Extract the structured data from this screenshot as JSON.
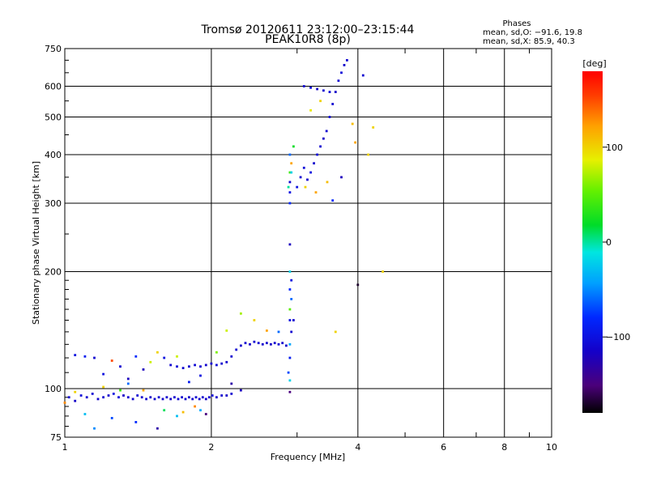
{
  "chart_data": {
    "type": "scatter",
    "title": "Tromsø 20120611 23:12:00–23:15:44",
    "subtitle": "PEAK10R8 (8p)",
    "xlabel": "Frequency [MHz]",
    "ylabel": "Stationary phase Virtual Height [km]",
    "x_scale": "log",
    "y_scale": "log",
    "xlim": [
      1,
      10
    ],
    "ylim": [
      75,
      750
    ],
    "x_ticks": [
      1,
      2,
      4,
      6,
      8,
      10
    ],
    "x_tick_labels": [
      "1",
      "2",
      "4",
      "6",
      "8",
      "10"
    ],
    "y_ticks": [
      75,
      100,
      200,
      300,
      400,
      500,
      600,
      750
    ],
    "y_tick_labels": [
      "75",
      "100",
      "200",
      "300",
      "400",
      "500",
      "600",
      "750"
    ],
    "grid": true,
    "phases_stats": {
      "title": "Phases",
      "line_o": "mean, sd,O: −91.6, 19.8",
      "line_x": "mean, sd,X:  85.9, 40.3"
    },
    "colorbar": {
      "label": "[deg]",
      "range": [
        -180,
        180
      ],
      "ticks": [
        100,
        0,
        -100
      ],
      "tick_labels": [
        "100",
        "0",
        "−100"
      ]
    },
    "series": [
      {
        "points": [
          [
            1.02,
            95,
            -110
          ],
          [
            1.05,
            93,
            -115
          ],
          [
            1.08,
            96,
            -105
          ],
          [
            1.11,
            95,
            -110
          ],
          [
            1.14,
            97,
            -108
          ],
          [
            1.17,
            94,
            -112
          ],
          [
            1.2,
            95,
            -110
          ],
          [
            1.23,
            96,
            -112
          ],
          [
            1.26,
            97,
            -100
          ],
          [
            1.29,
            95,
            -105
          ],
          [
            1.32,
            96,
            -115
          ],
          [
            1.35,
            95,
            -110
          ],
          [
            1.38,
            94,
            -110
          ],
          [
            1.41,
            96,
            -108
          ],
          [
            1.44,
            95,
            -112
          ],
          [
            1.47,
            94,
            -110
          ],
          [
            1.5,
            95,
            -115
          ],
          [
            1.53,
            94,
            -110
          ],
          [
            1.56,
            95,
            -108
          ],
          [
            1.59,
            94,
            -112
          ],
          [
            1.62,
            95,
            -110
          ],
          [
            1.65,
            94,
            -115
          ],
          [
            1.68,
            95,
            -110
          ],
          [
            1.71,
            94,
            -108
          ],
          [
            1.74,
            95,
            -112
          ],
          [
            1.77,
            94,
            -110
          ],
          [
            1.8,
            95,
            -115
          ],
          [
            1.83,
            94,
            -110
          ],
          [
            1.86,
            95,
            -108
          ],
          [
            1.89,
            94,
            -112
          ],
          [
            1.92,
            95,
            -110
          ],
          [
            1.95,
            94,
            -115
          ],
          [
            1.98,
            95,
            -110
          ],
          [
            2.01,
            96,
            -108
          ],
          [
            2.05,
            95,
            -112
          ],
          [
            2.1,
            96,
            -110
          ],
          [
            2.15,
            96,
            -115
          ],
          [
            2.2,
            97,
            -110
          ],
          [
            1.2,
            101,
            100
          ],
          [
            1.3,
            99,
            40
          ],
          [
            1.45,
            99,
            120
          ],
          [
            1.6,
            88,
            10
          ],
          [
            1.75,
            87,
            110
          ],
          [
            1.85,
            90,
            130
          ],
          [
            1.95,
            86,
            -150
          ],
          [
            1.15,
            79,
            -50
          ],
          [
            1.4,
            82,
            -80
          ],
          [
            1.55,
            79,
            -130
          ],
          [
            1.7,
            85,
            -30
          ],
          [
            1.9,
            88,
            -40
          ],
          [
            1.1,
            86,
            -30
          ],
          [
            1.25,
            84,
            -70
          ],
          [
            1.0,
            92,
            130
          ],
          [
            1.05,
            98,
            100
          ],
          [
            1.35,
            103,
            -60
          ],
          [
            1.65,
            115,
            -110
          ],
          [
            1.7,
            114,
            -105
          ],
          [
            1.75,
            113,
            -110
          ],
          [
            1.8,
            114,
            -112
          ],
          [
            1.85,
            115,
            -108
          ],
          [
            1.9,
            114,
            -110
          ],
          [
            1.95,
            115,
            -112
          ],
          [
            2.0,
            116,
            -110
          ],
          [
            2.05,
            115,
            -105
          ],
          [
            2.1,
            116,
            -110
          ],
          [
            2.15,
            117,
            -112
          ],
          [
            2.2,
            121,
            -110
          ],
          [
            2.25,
            126,
            -108
          ],
          [
            2.3,
            129,
            -112
          ],
          [
            2.35,
            131,
            -110
          ],
          [
            2.4,
            130,
            -115
          ],
          [
            2.45,
            132,
            -110
          ],
          [
            2.5,
            131,
            -108
          ],
          [
            2.55,
            130,
            -112
          ],
          [
            2.6,
            131,
            -110
          ],
          [
            2.65,
            130,
            -115
          ],
          [
            2.7,
            131,
            -110
          ],
          [
            2.75,
            130,
            -108
          ],
          [
            2.8,
            131,
            -112
          ],
          [
            2.85,
            129,
            -110
          ],
          [
            1.05,
            122,
            -100
          ],
          [
            1.1,
            121,
            -90
          ],
          [
            1.15,
            120,
            -110
          ],
          [
            1.25,
            118,
            150
          ],
          [
            1.3,
            114,
            -110
          ],
          [
            1.4,
            121,
            -80
          ],
          [
            1.45,
            112,
            -120
          ],
          [
            1.5,
            117,
            80
          ],
          [
            1.55,
            124,
            100
          ],
          [
            1.6,
            120,
            -100
          ],
          [
            1.7,
            121,
            80
          ],
          [
            1.2,
            109,
            -100
          ],
          [
            1.35,
            106,
            -120
          ],
          [
            1.8,
            104,
            -90
          ],
          [
            1.9,
            108,
            -100
          ],
          [
            2.05,
            124,
            60
          ],
          [
            2.15,
            141,
            80
          ],
          [
            2.3,
            156,
            70
          ],
          [
            2.45,
            150,
            100
          ],
          [
            2.6,
            141,
            120
          ],
          [
            2.75,
            140,
            -60
          ],
          [
            2.2,
            103,
            -130
          ],
          [
            2.3,
            99,
            -120
          ],
          [
            2.9,
            320,
            -100
          ],
          [
            2.9,
            340,
            -110
          ],
          [
            2.9,
            360,
            40
          ],
          [
            2.92,
            380,
            120
          ],
          [
            2.9,
            400,
            -60
          ],
          [
            2.92,
            360,
            -20
          ],
          [
            2.9,
            300,
            -80
          ],
          [
            2.95,
            420,
            20
          ],
          [
            2.88,
            330,
            0
          ],
          [
            2.9,
            200,
            -20
          ],
          [
            2.9,
            180,
            -80
          ],
          [
            2.92,
            170,
            -60
          ],
          [
            2.9,
            160,
            50
          ],
          [
            2.9,
            150,
            -100
          ],
          [
            2.92,
            140,
            -110
          ],
          [
            2.9,
            130,
            -40
          ],
          [
            2.9,
            120,
            -90
          ],
          [
            2.88,
            110,
            -70
          ],
          [
            2.9,
            105,
            -20
          ],
          [
            2.9,
            98,
            -150
          ],
          [
            2.9,
            235,
            -120
          ],
          [
            2.92,
            190,
            -100
          ],
          [
            2.95,
            150,
            -110
          ],
          [
            3.0,
            330,
            -100
          ],
          [
            3.05,
            350,
            -110
          ],
          [
            3.1,
            370,
            -105
          ],
          [
            3.15,
            345,
            -110
          ],
          [
            3.2,
            360,
            -100
          ],
          [
            3.25,
            380,
            -112
          ],
          [
            3.3,
            400,
            -105
          ],
          [
            3.35,
            420,
            -110
          ],
          [
            3.4,
            440,
            -115
          ],
          [
            3.45,
            460,
            -110
          ],
          [
            3.5,
            500,
            -105
          ],
          [
            3.55,
            540,
            -110
          ],
          [
            3.6,
            580,
            -115
          ],
          [
            3.65,
            620,
            -110
          ],
          [
            3.7,
            650,
            -105
          ],
          [
            3.75,
            680,
            -112
          ],
          [
            3.8,
            700,
            -110
          ],
          [
            3.1,
            600,
            -110
          ],
          [
            3.2,
            595,
            -105
          ],
          [
            3.3,
            590,
            -115
          ],
          [
            3.4,
            585,
            -110
          ],
          [
            3.5,
            580,
            -105
          ],
          [
            3.12,
            330,
            100
          ],
          [
            3.28,
            320,
            120
          ],
          [
            3.46,
            340,
            110
          ],
          [
            3.35,
            550,
            100
          ],
          [
            3.2,
            520,
            90
          ],
          [
            3.55,
            305,
            -80
          ],
          [
            3.7,
            350,
            -120
          ],
          [
            3.9,
            480,
            110
          ],
          [
            3.95,
            430,
            120
          ],
          [
            4.2,
            400,
            100
          ],
          [
            4.3,
            470,
            100
          ],
          [
            4.1,
            640,
            -110
          ],
          [
            4.0,
            185,
            -170
          ],
          [
            4.5,
            200,
            100
          ],
          [
            3.6,
            140,
            100
          ]
        ]
      }
    ]
  }
}
